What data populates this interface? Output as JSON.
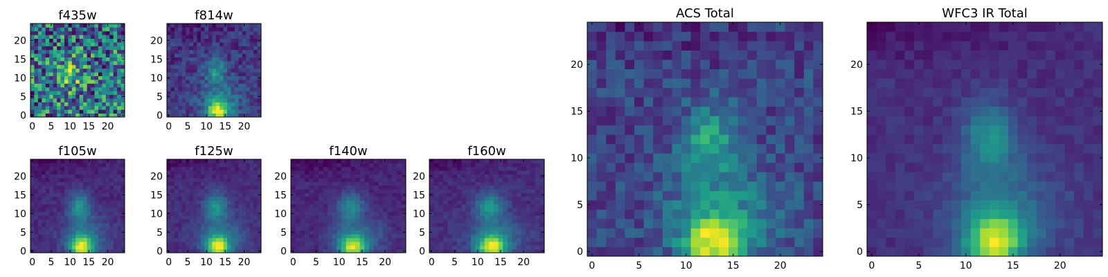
{
  "chart_data": [
    {
      "type": "heatmap",
      "title": "f435w",
      "colormap": "viridis",
      "xlim": [
        -0.5,
        24.5
      ],
      "ylim": [
        -0.5,
        24.5
      ],
      "xticks": [
        0,
        5,
        10,
        15,
        20
      ],
      "yticks": [
        0,
        5,
        10,
        15,
        20
      ],
      "grid": false,
      "peak_location": [
        10,
        11
      ],
      "noise_level": "high"
    },
    {
      "type": "heatmap",
      "title": "f814w",
      "colormap": "viridis",
      "xlim": [
        -0.5,
        24.5
      ],
      "ylim": [
        -0.5,
        24.5
      ],
      "xticks": [
        0,
        5,
        10,
        15,
        20
      ],
      "yticks": [
        0,
        5,
        10,
        15,
        20
      ],
      "grid": false,
      "peak_location": [
        13,
        1
      ],
      "noise_level": "medium"
    },
    {
      "type": "heatmap",
      "title": "f105w",
      "colormap": "viridis",
      "xlim": [
        -0.5,
        24.5
      ],
      "ylim": [
        -0.5,
        24.5
      ],
      "xticks": [
        0,
        5,
        10,
        15,
        20
      ],
      "yticks": [
        0,
        5,
        10,
        15,
        20
      ],
      "grid": false,
      "peak_location": [
        13,
        1
      ],
      "noise_level": "low"
    },
    {
      "type": "heatmap",
      "title": "f125w",
      "colormap": "viridis",
      "xlim": [
        -0.5,
        24.5
      ],
      "ylim": [
        -0.5,
        24.5
      ],
      "xticks": [
        0,
        5,
        10,
        15,
        20
      ],
      "yticks": [
        0,
        5,
        10,
        15,
        20
      ],
      "grid": false,
      "peak_location": [
        13,
        1
      ],
      "noise_level": "low"
    },
    {
      "type": "heatmap",
      "title": "f140w",
      "colormap": "viridis",
      "xlim": [
        -0.5,
        24.5
      ],
      "ylim": [
        -0.5,
        24.5
      ],
      "xticks": [
        0,
        5,
        10,
        15,
        20
      ],
      "yticks": [
        0,
        5,
        10,
        15,
        20
      ],
      "grid": false,
      "peak_location": [
        13,
        1
      ],
      "noise_level": "low"
    },
    {
      "type": "heatmap",
      "title": "f160w",
      "colormap": "viridis",
      "xlim": [
        -0.5,
        24.5
      ],
      "ylim": [
        -0.5,
        24.5
      ],
      "xticks": [
        0,
        5,
        10,
        15,
        20
      ],
      "yticks": [
        0,
        5,
        10,
        15,
        20
      ],
      "grid": false,
      "peak_location": [
        13,
        1
      ],
      "noise_level": "low"
    },
    {
      "type": "heatmap",
      "title": "ACS Total",
      "colormap": "viridis",
      "xlim": [
        -0.5,
        24.5
      ],
      "ylim": [
        -0.5,
        24.5
      ],
      "xticks": [
        0,
        5,
        10,
        15,
        20
      ],
      "yticks": [
        0,
        5,
        10,
        15,
        20
      ],
      "grid": false,
      "peak_location": [
        13,
        1
      ],
      "noise_level": "medium"
    },
    {
      "type": "heatmap",
      "title": "WFC3 IR Total",
      "colormap": "viridis",
      "xlim": [
        -0.5,
        24.5
      ],
      "ylim": [
        -0.5,
        24.5
      ],
      "xticks": [
        0,
        5,
        10,
        15,
        20
      ],
      "yticks": [
        0,
        5,
        10,
        15,
        20
      ],
      "grid": false,
      "peak_location": [
        13,
        1
      ],
      "noise_level": "low"
    }
  ]
}
